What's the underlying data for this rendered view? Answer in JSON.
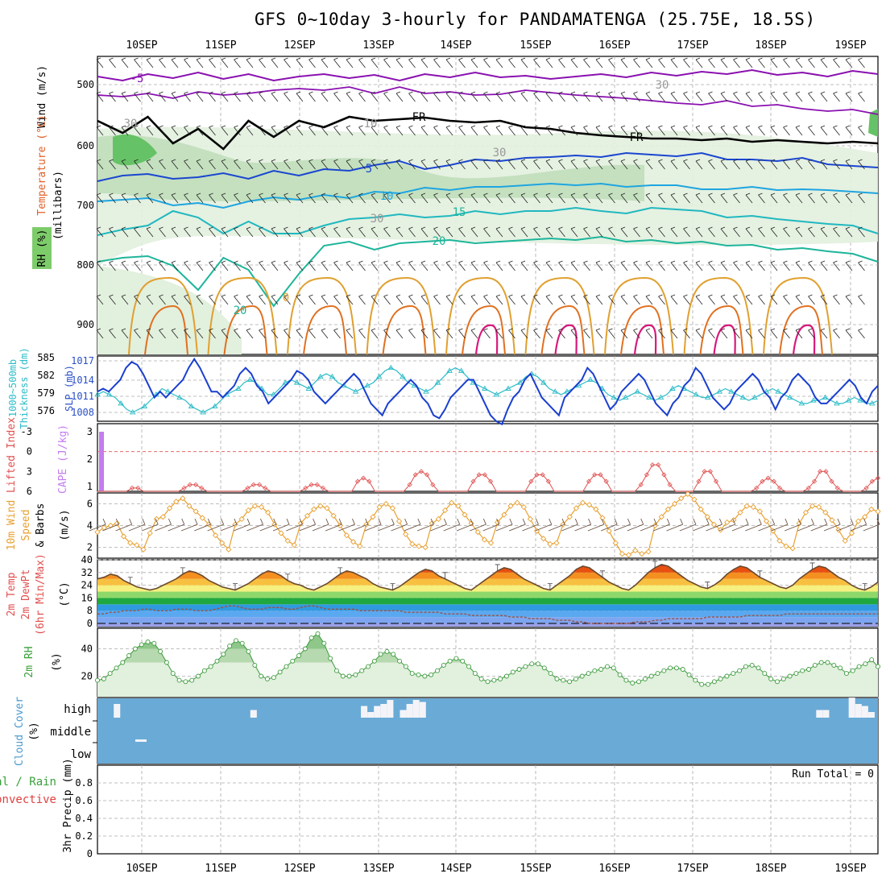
{
  "header": {
    "title": "GFS 0~10day 3-hourly for PANDAMATENGA (25.75E, 18.5S)"
  },
  "x_axis": {
    "day_labels": [
      "10SEP",
      "11SEP",
      "12SEP",
      "13SEP",
      "14SEP",
      "15SEP",
      "16SEP",
      "17SEP",
      "18SEP",
      "19SEP"
    ],
    "time_range_hours": [
      0,
      234
    ]
  },
  "colors": {
    "purple": "#8a10b0",
    "blue": "#1a46d0",
    "cyan": "#1ea5e0",
    "teal": "#1db59a",
    "orange": "#e0a030",
    "dark_orange": "#e07020",
    "magenta": "#d61a7a",
    "slp_line": "#1a3fd0",
    "thickness_line": "#2cbcc8",
    "lifted_index": "#e05050",
    "cape_bar": "#c47cf0",
    "wind_speed": "#e8a030",
    "rh_fill_light": "#e2f0de",
    "rh_fill_mid": "#b7d9b0",
    "rh_fill_dark": "#8fc78a",
    "cloud_sky": "#6aaad6"
  },
  "panels": {
    "upper_air": {
      "y_label_wind": "Wind (m/s)",
      "y_label_temp": "Temperature (°C)",
      "y_label_rh": "RH (%)",
      "y_unit": "(millibars)",
      "y_ticks": [
        "500",
        "600",
        "700",
        "800",
        "900"
      ],
      "contour_labels": [
        "-5",
        "FR",
        "FR",
        "5",
        "10",
        "15",
        "20",
        "20",
        "0",
        "30",
        "30",
        "30",
        "30",
        "10"
      ]
    },
    "slp_thickness": {
      "y_label_left": "1000~500mb",
      "y_label_left2": "Thickness (dm)",
      "y_label_right": "SLP (mb)",
      "thickness_ticks": [
        "585",
        "582",
        "579",
        "576"
      ],
      "slp_ticks": [
        "1017",
        "1014",
        "1011",
        "1008"
      ]
    },
    "stability": {
      "y_label_li": "Lifted Index",
      "y_label_cape": "CAPE (J/kg)",
      "li_ticks": [
        "-3",
        "0",
        "3",
        "6"
      ],
      "cape_ticks": [
        "3",
        "2",
        "1"
      ]
    },
    "wind10m": {
      "y_label1": "10m Wind",
      "y_label2": "Speed",
      "y_label3": "& Barbs",
      "unit": "(m/s)",
      "ticks": [
        "6",
        "4",
        "2"
      ]
    },
    "temp2m": {
      "y_label1": "2m Temp",
      "y_label2": "2m DewPt",
      "y_label3": "(6hr Min/Max)",
      "unit": "(°C)",
      "ticks": [
        "40",
        "32",
        "24",
        "16",
        "8",
        "0"
      ]
    },
    "rh2m": {
      "y_label": "2m RH",
      "unit": "(%)",
      "ticks": [
        "40",
        "20"
      ]
    },
    "cloud": {
      "y_label": "Cloud Cover",
      "unit": "(%)",
      "levels": [
        "high",
        "middle",
        "low"
      ]
    },
    "precip": {
      "y_label_total": "Total / Rain",
      "y_label_conv": "Convective",
      "y_label": "3hr Precip (mm)",
      "ticks": [
        "0.8",
        "0.6",
        "0.4",
        "0.2",
        "0"
      ],
      "run_total": "Run Total = 0"
    }
  },
  "chart_data": [
    {
      "type": "line",
      "title": "Sea-level pressure and 1000-500mb thickness",
      "x": "forecast hour (3-hourly from 09 SEP 12Z)",
      "series": [
        {
          "name": "SLP (mb)",
          "axis": "right",
          "ylim": [
            1007,
            1018
          ],
          "values": [
            1012,
            1012.5,
            1012,
            1013,
            1014,
            1016,
            1017,
            1016.5,
            1015,
            1013,
            1011,
            1012,
            1011,
            1012,
            1013,
            1014,
            1016,
            1017.5,
            1016,
            1014,
            1012,
            1012,
            1011,
            1012,
            1013,
            1015,
            1016,
            1015,
            1013,
            1012,
            1010,
            1011,
            1012,
            1013,
            1014,
            1015.5,
            1015,
            1014,
            1012,
            1011,
            1010,
            1011,
            1012,
            1013,
            1014,
            1015,
            1014,
            1012,
            1010,
            1009,
            1008,
            1010,
            1011,
            1012,
            1013,
            1014,
            1013,
            1011,
            1010,
            1008,
            1007.5,
            1009,
            1011,
            1012,
            1013,
            1014,
            1014,
            1012,
            1010,
            1008,
            1007,
            1006.5,
            1009,
            1011,
            1012,
            1014,
            1015,
            1013,
            1011,
            1010,
            1009,
            1008,
            1011,
            1012,
            1013,
            1014,
            1016,
            1015,
            1013,
            1011,
            1009,
            1010,
            1012,
            1013,
            1014,
            1015,
            1014,
            1012,
            1010,
            1009,
            1008,
            1010,
            1011,
            1013,
            1014,
            1016,
            1015,
            1013,
            1011,
            1010,
            1009,
            1010,
            1012,
            1013,
            1014,
            1015,
            1014,
            1012,
            1011,
            1009,
            1011,
            1012,
            1014,
            1015,
            1014,
            1013,
            1011,
            1010,
            1010,
            1011,
            1012,
            1013,
            1014,
            1013,
            1011,
            1010,
            1012,
            1013
          ]
        },
        {
          "name": "Thickness (dm)",
          "axis": "left",
          "ylim": [
            574.5,
            585.5
          ],
          "values": [
            579,
            579.5,
            579,
            578.5,
            577.5,
            576.5,
            576,
            576.5,
            577,
            578,
            579,
            580,
            579.5,
            579,
            578.5,
            578,
            577,
            576.5,
            576,
            576.5,
            577,
            578,
            579,
            579.5,
            580,
            581,
            581.5,
            581,
            580,
            579,
            579,
            580,
            581,
            581.5,
            581,
            580.5,
            580,
            581,
            582,
            582.5,
            582,
            581,
            580.5,
            580,
            579.5,
            580,
            580.5,
            581,
            582,
            583,
            583.5,
            583,
            582,
            581,
            580.5,
            580,
            579.5,
            580,
            581,
            582,
            583,
            583.5,
            583,
            582,
            581,
            580.5,
            580,
            579.5,
            579,
            579.5,
            580,
            580.5,
            581,
            582,
            582.5,
            582,
            581,
            580,
            579.5,
            579,
            579.5,
            580,
            580.5,
            581,
            581.5,
            581,
            580,
            579,
            578.5,
            578,
            578.5,
            579,
            579.5,
            579,
            578.5,
            578,
            578.5,
            579,
            580,
            580.5,
            580,
            579.5,
            579,
            578.5,
            578.5,
            579,
            579.5,
            580,
            579.5,
            579,
            578.5,
            578,
            578.5,
            579,
            579.5,
            580,
            579.5,
            579,
            578.5,
            578,
            577.5,
            577.5,
            578,
            578,
            578.5,
            578,
            577.5,
            577.5,
            578,
            578.5,
            578,
            577.5,
            577.5,
            578
          ]
        }
      ]
    },
    {
      "type": "line",
      "title": "Lifted Index / CAPE",
      "series": [
        {
          "name": "Lifted Index",
          "axis": "left",
          "ylim": [
            -3,
            6
          ],
          "values": [
            6,
            6,
            6,
            6,
            6,
            6,
            5.5,
            5.5,
            6,
            6,
            6,
            6,
            6,
            6,
            6,
            5.5,
            5,
            5,
            5.5,
            6,
            6,
            6,
            6,
            6,
            6,
            6,
            5.5,
            5,
            5,
            5.5,
            6,
            6,
            6,
            6,
            6,
            6,
            5.5,
            5,
            5,
            5.5,
            6,
            6,
            6,
            6,
            6,
            4.5,
            4,
            4.5,
            6,
            6,
            6,
            6,
            6,
            6,
            5,
            3.5,
            3,
            3.5,
            5,
            6,
            6,
            6,
            6,
            6,
            6,
            4.5,
            3.5,
            3.5,
            4.5,
            6,
            6,
            6,
            6,
            6,
            6,
            4.5,
            3.5,
            3.5,
            4.5,
            6,
            6,
            6,
            6,
            6,
            6,
            4.5,
            3.5,
            3.5,
            4.5,
            6,
            6,
            6,
            6,
            6,
            5,
            3.5,
            2,
            2,
            3.5,
            5,
            6,
            6,
            6,
            6,
            4.5,
            3,
            3,
            4.5,
            6,
            6,
            6,
            6,
            6,
            6,
            5.5,
            4.5,
            4,
            4.5,
            5.5,
            6,
            6,
            6,
            6,
            5.5,
            4.5,
            3,
            3,
            4.5,
            5.5,
            6,
            6,
            6,
            6,
            5.5,
            4.5,
            4
          ]
        },
        {
          "name": "CAPE (J/kg)",
          "axis": "right",
          "kind": "bar",
          "values_nonzero": [
            {
              "hour": 0,
              "value": 3
            }
          ]
        }
      ]
    },
    {
      "type": "line",
      "title": "10m Wind Speed",
      "ylabel": "m/s",
      "ylim": [
        1,
        7
      ],
      "values": [
        3.4,
        3.8,
        4.0,
        4.2,
        3.0,
        2.4,
        2.2,
        1.8,
        3.3,
        4.6,
        4.8,
        5.6,
        6.2,
        6.5,
        5.8,
        5.3,
        4.7,
        4.1,
        3.1,
        2.4,
        1.8,
        4.1,
        4.6,
        5.4,
        5.8,
        5.7,
        5.2,
        4.1,
        3.3,
        2.6,
        2.2,
        4.2,
        4.9,
        5.5,
        5.8,
        5.6,
        4.9,
        4.0,
        3.1,
        2.5,
        2.1,
        4.1,
        4.8,
        5.7,
        6.0,
        5.6,
        4.4,
        3.2,
        2.3,
        2.1,
        2.0,
        4.2,
        4.6,
        5.4,
        6.1,
        5.8,
        5.0,
        4.2,
        3.4,
        2.7,
        2.4,
        4.3,
        5.0,
        5.8,
        6.1,
        5.7,
        4.6,
        3.5,
        2.8,
        2.3,
        2.4,
        4.1,
        4.8,
        5.6,
        6.1,
        5.9,
        5.5,
        4.7,
        3.5,
        2.4,
        1.4,
        1.3,
        1.7,
        1.4,
        1.6,
        4.0,
        4.8,
        5.5,
        6.0,
        6.5,
        6.9,
        6.4,
        5.5,
        4.8,
        4.1,
        3.6,
        4.3,
        4.5,
        5.2,
        5.8,
        5.7,
        5.3,
        4.4,
        3.5,
        2.6,
        2.1,
        1.9,
        4.2,
        5.2,
        5.8,
        5.7,
        5.2,
        4.5,
        3.6,
        2.6,
        3.3,
        4.4,
        4.8,
        5.5,
        5.3
      ]
    },
    {
      "type": "area",
      "title": "2m Temperature / Dew Point",
      "ylabel": "°C",
      "ylim": [
        -2,
        40
      ],
      "series": [
        {
          "name": "2m Temp",
          "values": [
            28,
            29,
            31,
            30,
            27,
            25,
            23,
            22,
            21,
            22,
            24,
            26,
            28,
            31,
            33,
            32,
            30,
            27,
            25,
            23,
            22,
            21,
            23,
            25,
            28,
            31,
            33,
            32,
            30,
            27,
            25,
            24,
            22,
            21,
            23,
            25,
            28,
            31,
            33,
            32,
            30,
            28,
            25,
            23,
            22,
            21,
            23,
            26,
            29,
            32,
            34,
            33,
            30,
            28,
            26,
            24,
            22,
            21,
            24,
            27,
            30,
            33,
            35,
            34,
            31,
            28,
            26,
            24,
            22,
            21,
            24,
            27,
            30,
            34,
            36,
            35,
            32,
            29,
            26,
            24,
            22,
            21,
            24,
            28,
            32,
            35,
            37,
            36,
            33,
            30,
            27,
            25,
            23,
            22,
            24,
            27,
            31,
            34,
            36,
            35,
            32,
            29,
            27,
            25,
            23,
            22,
            24,
            28,
            31,
            34,
            36,
            35,
            32,
            29,
            27,
            24,
            22,
            21,
            23,
            26
          ]
        },
        {
          "name": "2m DewPt",
          "values": [
            6,
            6,
            7,
            7,
            8,
            8,
            8,
            9,
            9,
            8,
            8,
            8,
            9,
            9,
            9,
            8,
            8,
            8,
            9,
            10,
            11,
            11,
            10,
            9,
            9,
            9,
            10,
            10,
            10,
            9,
            9,
            10,
            11,
            11,
            10,
            9,
            9,
            9,
            9,
            9,
            8,
            8,
            8,
            8,
            8,
            8,
            8,
            7,
            7,
            7,
            7,
            7,
            7,
            6,
            6,
            6,
            6,
            5,
            5,
            5,
            5,
            5,
            5,
            4,
            4,
            4,
            3,
            3,
            3,
            3,
            2,
            2,
            2,
            1,
            1,
            0,
            0,
            0,
            0,
            0,
            0,
            0,
            1,
            1,
            1,
            2,
            2,
            3,
            3,
            3,
            3,
            3,
            3,
            4,
            4,
            4,
            4,
            4,
            4,
            5,
            5,
            5,
            5,
            5,
            5,
            6,
            6,
            6,
            6,
            6,
            6,
            6,
            6,
            6,
            6,
            6,
            6,
            6,
            6,
            6
          ]
        }
      ]
    },
    {
      "type": "area",
      "title": "2m Relative Humidity",
      "ylabel": "%",
      "ylim": [
        5,
        55
      ],
      "values": [
        17,
        18,
        22,
        26,
        30,
        35,
        40,
        43,
        45,
        44,
        38,
        30,
        22,
        17,
        16,
        17,
        20,
        24,
        27,
        31,
        36,
        42,
        46,
        44,
        38,
        28,
        20,
        18,
        19,
        23,
        27,
        31,
        35,
        40,
        48,
        51,
        44,
        33,
        24,
        20,
        20,
        21,
        24,
        27,
        31,
        36,
        38,
        36,
        31,
        27,
        22,
        21,
        20,
        21,
        24,
        28,
        31,
        33,
        31,
        27,
        22,
        18,
        16,
        17,
        18,
        20,
        23,
        25,
        27,
        29,
        29,
        26,
        22,
        18,
        17,
        16,
        18,
        20,
        22,
        24,
        25,
        27,
        26,
        21,
        17,
        15,
        16,
        18,
        20,
        22,
        24,
        26,
        26,
        25,
        21,
        17,
        14,
        14,
        16,
        18,
        20,
        22,
        24,
        27,
        28,
        26,
        22,
        18,
        16,
        18,
        20,
        22,
        24,
        25,
        28,
        30,
        30,
        28,
        26,
        22,
        24,
        27,
        29,
        32,
        27
      ]
    },
    {
      "type": "bar",
      "title": "Cloud Cover high level (%)",
      "values_by_hour": [
        0,
        0,
        0,
        30,
        0,
        0,
        0,
        0,
        0,
        0,
        0,
        0,
        0,
        0,
        0,
        0,
        0,
        0,
        0,
        0,
        0,
        0,
        0,
        0,
        15,
        0,
        0,
        0,
        0,
        0,
        0,
        0,
        0,
        0,
        0,
        0,
        0,
        0,
        0,
        0,
        0,
        25,
        10,
        25,
        30,
        40,
        0,
        15,
        30,
        40,
        35,
        0,
        0,
        0,
        0,
        0,
        0,
        0,
        0,
        0,
        0,
        0,
        0,
        0,
        0,
        0,
        0,
        0,
        0,
        0,
        0,
        0,
        0,
        0,
        0,
        0,
        0,
        0,
        0,
        0,
        0,
        0,
        0,
        0,
        0,
        0,
        0,
        0,
        0,
        0,
        0,
        0,
        0,
        0,
        0,
        0,
        0,
        0,
        0,
        0,
        0,
        0,
        0,
        0,
        0,
        0,
        0,
        0,
        0,
        0,
        0,
        15,
        15,
        0,
        0,
        0,
        45,
        30,
        25,
        10,
        0
      ]
    },
    {
      "type": "bar",
      "title": "3hr Precip (mm)",
      "ylim": [
        0,
        1.0
      ],
      "values": []
    }
  ]
}
